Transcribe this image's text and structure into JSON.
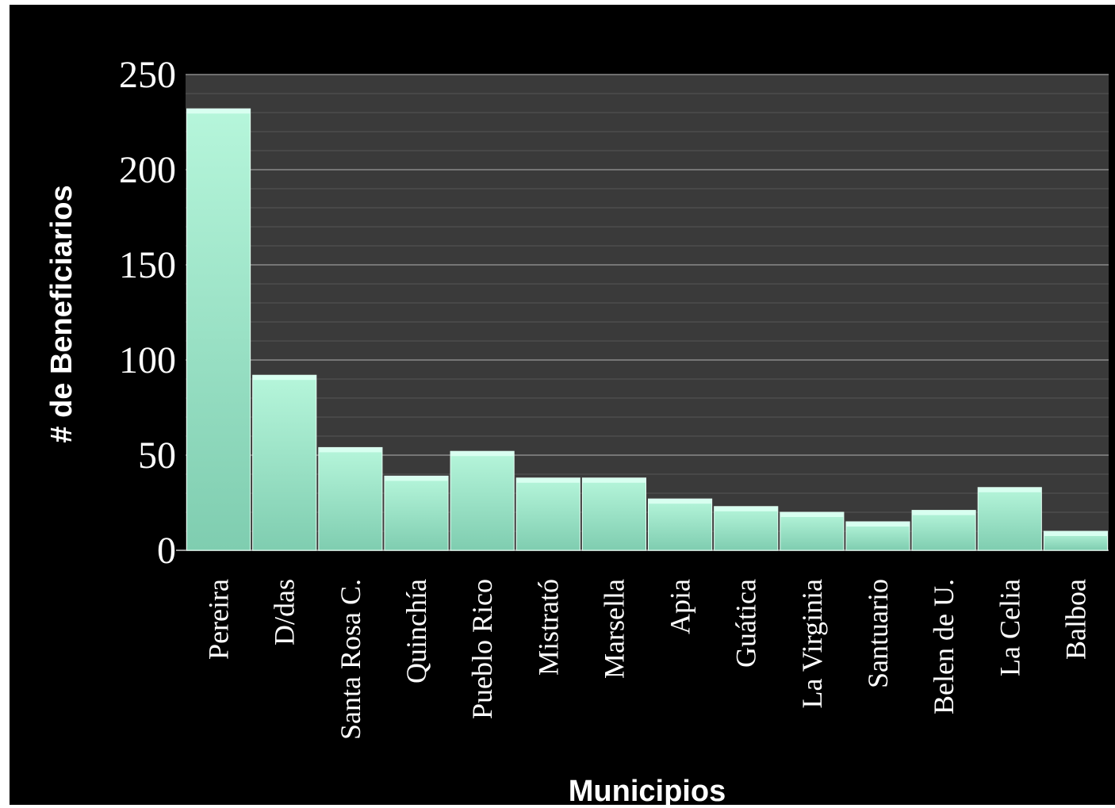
{
  "chart_data": {
    "type": "bar",
    "xlabel": "Municipios",
    "ylabel": "# de Beneficiarios",
    "ylim": [
      0,
      250
    ],
    "yticks": [
      0,
      50,
      100,
      150,
      200,
      250
    ],
    "grid": true,
    "categories": [
      "Pereira",
      "D/das",
      "Santa Rosa C.",
      "Quinchía",
      "Pueblo Rico",
      "Mistrató",
      "Marsella",
      "Apia",
      "Guática",
      "La Virginia",
      "Santuario",
      "Belen de U.",
      "La Celia",
      "Balboa"
    ],
    "values": [
      232,
      92,
      54,
      39,
      52,
      38,
      38,
      27,
      23,
      20,
      15,
      21,
      33,
      10
    ],
    "colors": {
      "bar": "#a3f0cf",
      "plot_bg": "#3a3a3a",
      "background": "#000000",
      "text": "#ffffff"
    }
  }
}
